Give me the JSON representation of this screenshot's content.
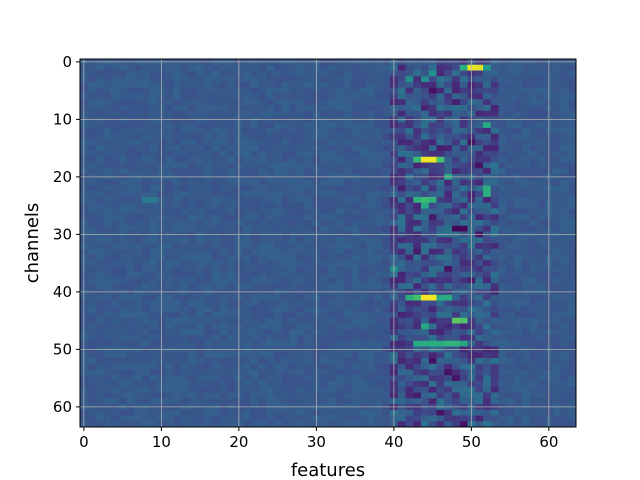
{
  "chart_data": {
    "type": "heatmap",
    "title": "",
    "xlabel": "features",
    "ylabel": "channels",
    "rows": 64,
    "cols": 64,
    "xlim": [
      -0.5,
      63.5
    ],
    "ylim": [
      63.5,
      -0.5
    ],
    "x_ticks": [
      0,
      10,
      20,
      30,
      40,
      50,
      60
    ],
    "y_ticks": [
      0,
      10,
      20,
      30,
      40,
      50,
      60
    ],
    "x_tick_labels": [
      "0",
      "10",
      "20",
      "30",
      "40",
      "50",
      "60"
    ],
    "y_tick_labels": [
      "0",
      "10",
      "20",
      "30",
      "40",
      "50",
      "60"
    ],
    "grid": true,
    "colormap": "viridis",
    "background_value": 0.28,
    "active_band_cols": [
      40,
      53
    ],
    "highlights": [
      {
        "row": 1,
        "col": 50,
        "value": 0.97
      },
      {
        "row": 1,
        "col": 51,
        "value": 0.95
      },
      {
        "row": 1,
        "col": 49,
        "value": 0.62
      },
      {
        "row": 1,
        "col": 52,
        "value": 0.55
      },
      {
        "row": 2,
        "col": 45,
        "value": 0.5
      },
      {
        "row": 3,
        "col": 44,
        "value": 0.5
      },
      {
        "row": 17,
        "col": 44,
        "value": 0.98
      },
      {
        "row": 17,
        "col": 45,
        "value": 0.97
      },
      {
        "row": 17,
        "col": 43,
        "value": 0.68
      },
      {
        "row": 17,
        "col": 46,
        "value": 0.7
      },
      {
        "row": 11,
        "col": 52,
        "value": 0.6
      },
      {
        "row": 20,
        "col": 47,
        "value": 0.6
      },
      {
        "row": 22,
        "col": 52,
        "value": 0.62
      },
      {
        "row": 23,
        "col": 52,
        "value": 0.62
      },
      {
        "row": 24,
        "col": 43,
        "value": 0.65
      },
      {
        "row": 24,
        "col": 44,
        "value": 0.68
      },
      {
        "row": 24,
        "col": 45,
        "value": 0.65
      },
      {
        "row": 25,
        "col": 44,
        "value": 0.6
      },
      {
        "row": 41,
        "col": 44,
        "value": 0.99
      },
      {
        "row": 41,
        "col": 45,
        "value": 0.98
      },
      {
        "row": 41,
        "col": 43,
        "value": 0.7
      },
      {
        "row": 41,
        "col": 42,
        "value": 0.62
      },
      {
        "row": 41,
        "col": 46,
        "value": 0.6
      },
      {
        "row": 41,
        "col": 47,
        "value": 0.62
      },
      {
        "row": 45,
        "col": 48,
        "value": 0.75
      },
      {
        "row": 45,
        "col": 49,
        "value": 0.72
      },
      {
        "row": 46,
        "col": 44,
        "value": 0.6
      },
      {
        "row": 49,
        "col": 43,
        "value": 0.6
      },
      {
        "row": 49,
        "col": 44,
        "value": 0.62
      },
      {
        "row": 49,
        "col": 45,
        "value": 0.62
      },
      {
        "row": 49,
        "col": 46,
        "value": 0.62
      },
      {
        "row": 49,
        "col": 47,
        "value": 0.65
      },
      {
        "row": 49,
        "col": 48,
        "value": 0.65
      },
      {
        "row": 49,
        "col": 49,
        "value": 0.6
      },
      {
        "row": 24,
        "col": 8,
        "value": 0.42
      },
      {
        "row": 24,
        "col": 9,
        "value": 0.42
      },
      {
        "row": 36,
        "col": 40,
        "value": 0.5
      },
      {
        "row": 3,
        "col": 42,
        "value": 0.5
      }
    ],
    "dark_spots": [
      {
        "row": 5,
        "col": 45,
        "value": 0.05
      },
      {
        "row": 7,
        "col": 48,
        "value": 0.08
      },
      {
        "row": 8,
        "col": 44,
        "value": 0.1
      },
      {
        "row": 14,
        "col": 50,
        "value": 0.05
      },
      {
        "row": 15,
        "col": 46,
        "value": 0.08
      },
      {
        "row": 18,
        "col": 51,
        "value": 0.05
      },
      {
        "row": 22,
        "col": 41,
        "value": 0.1
      },
      {
        "row": 27,
        "col": 45,
        "value": 0.08
      },
      {
        "row": 29,
        "col": 48,
        "value": 0.02
      },
      {
        "row": 29,
        "col": 49,
        "value": 0.02
      },
      {
        "row": 30,
        "col": 51,
        "value": 0.05
      },
      {
        "row": 33,
        "col": 43,
        "value": 0.08
      },
      {
        "row": 36,
        "col": 47,
        "value": 0.05
      },
      {
        "row": 38,
        "col": 50,
        "value": 0.08
      },
      {
        "row": 44,
        "col": 41,
        "value": 0.1
      },
      {
        "row": 52,
        "col": 45,
        "value": 0.05
      },
      {
        "row": 54,
        "col": 47,
        "value": 0.05
      },
      {
        "row": 55,
        "col": 48,
        "value": 0.05
      },
      {
        "row": 58,
        "col": 43,
        "value": 0.08
      },
      {
        "row": 61,
        "col": 46,
        "value": 0.05
      },
      {
        "row": 63,
        "col": 49,
        "value": 0.05
      }
    ]
  }
}
